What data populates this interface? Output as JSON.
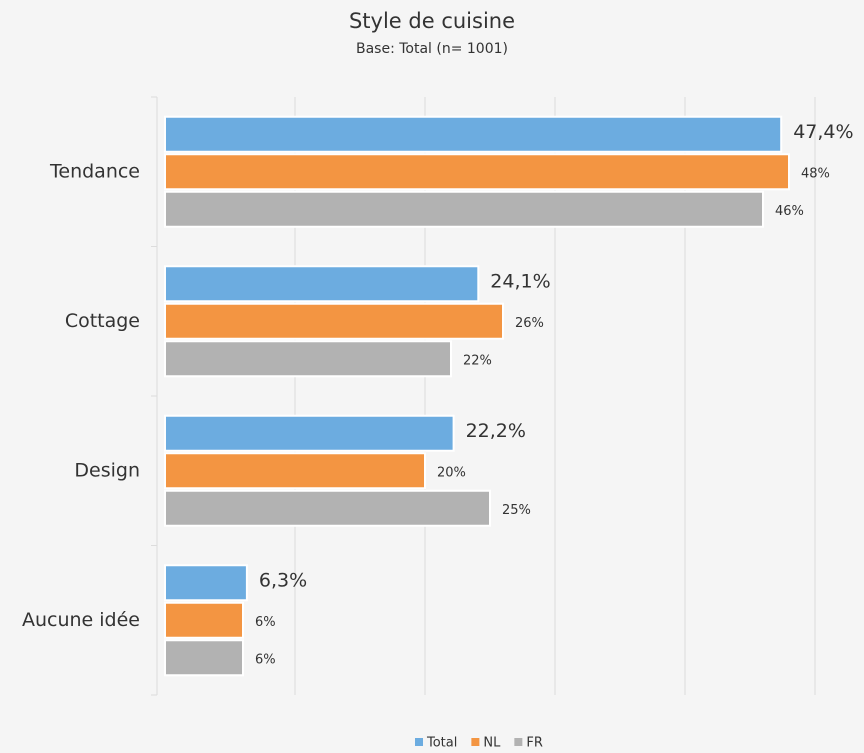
{
  "chart_data": {
    "type": "bar",
    "orientation": "horizontal",
    "title": "Style de cuisine",
    "subtitle": "Base: Total (n= 1001)",
    "categories": [
      "Tendance",
      "Cottage",
      "Design",
      "Aucune idée"
    ],
    "series": [
      {
        "name": "Total",
        "color": "#6cace0",
        "values": [
          47.4,
          24.1,
          22.2,
          6.3
        ],
        "value_labels": [
          "47,4%",
          "24,1%",
          "22,2%",
          "6,3%"
        ]
      },
      {
        "name": "NL",
        "color": "#f39542",
        "values": [
          48,
          26,
          20,
          6
        ],
        "value_labels": [
          "48%",
          "26%",
          "20%",
          "6%"
        ]
      },
      {
        "name": "FR",
        "color": "#b2b2b2",
        "values": [
          46,
          22,
          25,
          6
        ],
        "value_labels": [
          "46%",
          "22%",
          "25%",
          "6%"
        ]
      }
    ],
    "xlim": [
      0,
      50
    ],
    "xticks": [
      0,
      10,
      20,
      30,
      40,
      50
    ],
    "grid": true,
    "legend": "bottom"
  }
}
